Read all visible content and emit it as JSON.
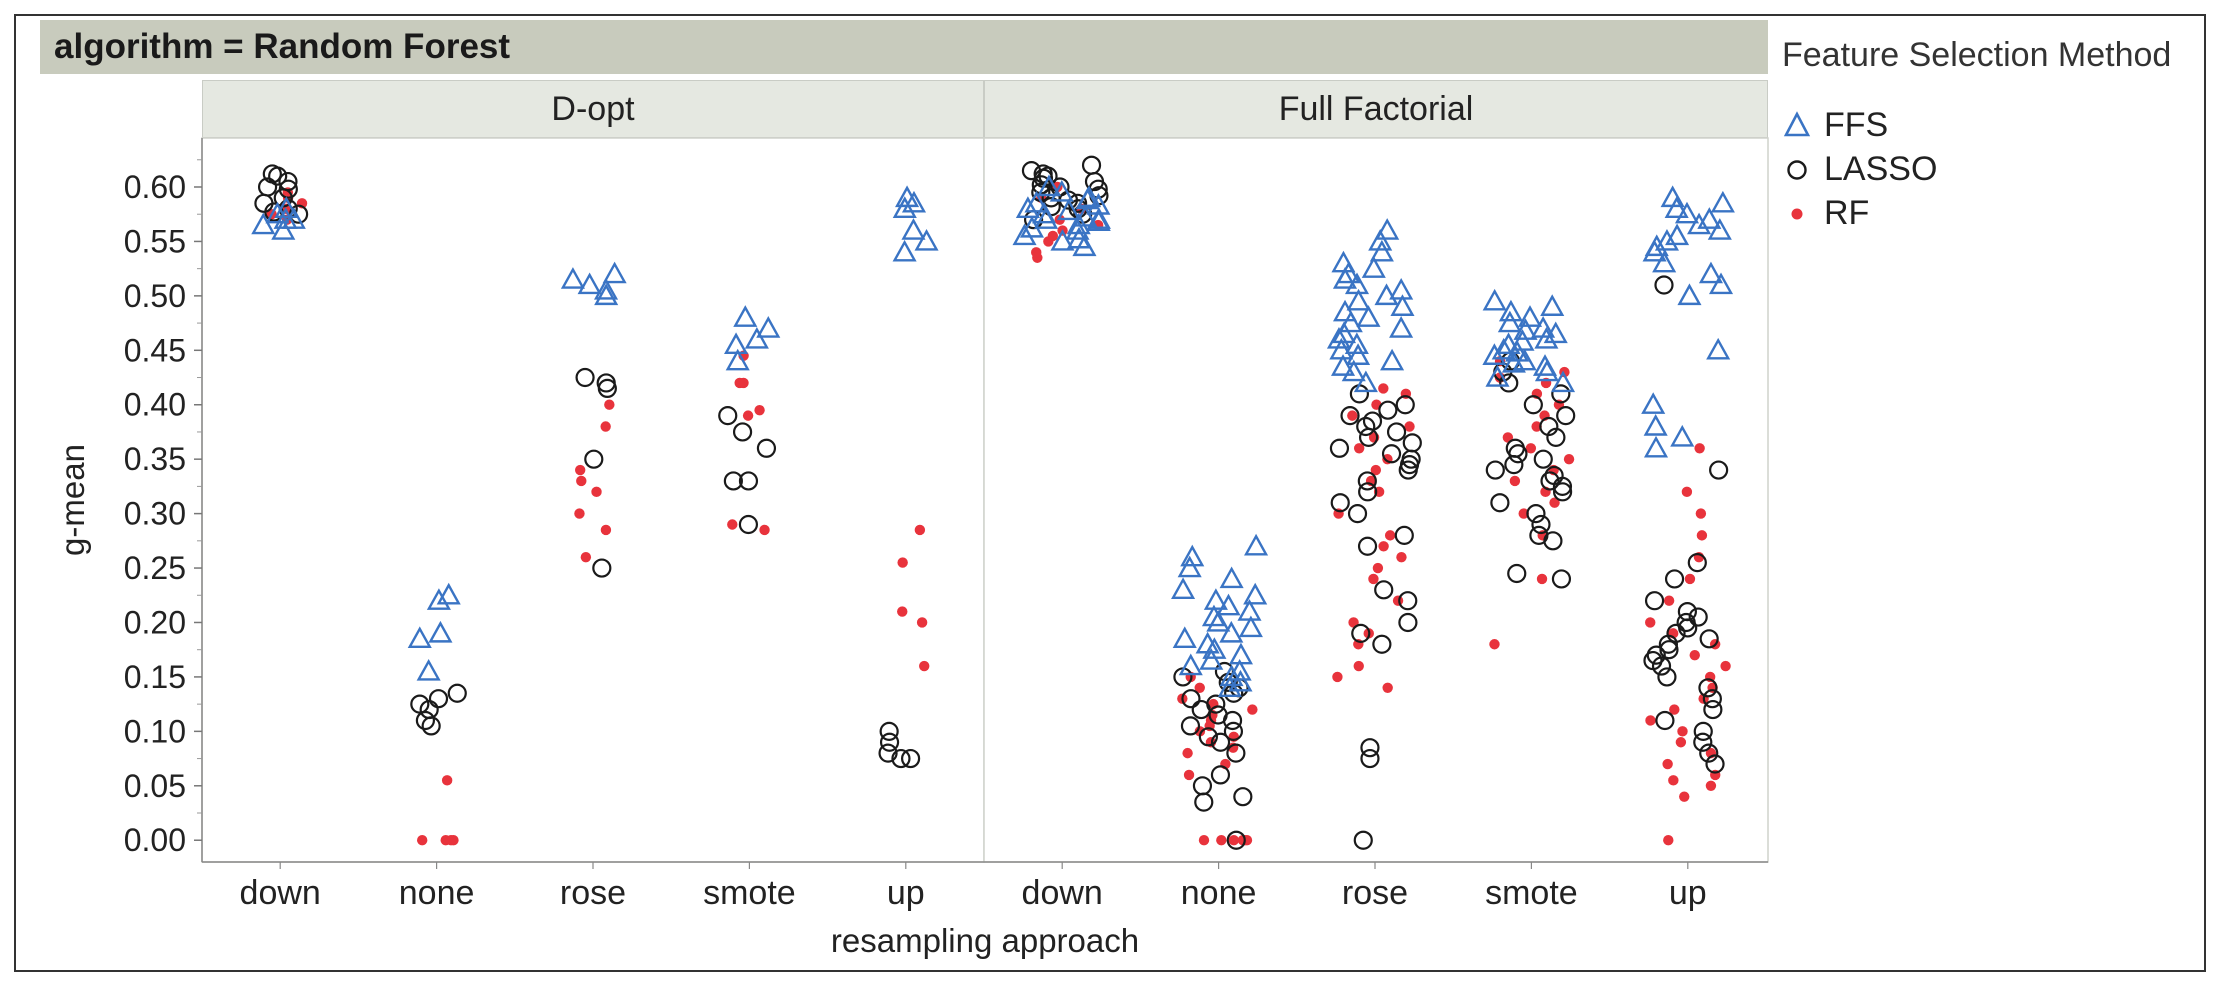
{
  "banner": "algorithm = Random Forest",
  "legend": {
    "title": "Feature Selection Method",
    "items": [
      {
        "label": "FFS",
        "color": "#3a74c4",
        "shape": "triangle-open"
      },
      {
        "label": "LASSO",
        "color": "#1a1a1a",
        "shape": "circle-open"
      },
      {
        "label": "RF",
        "color": "#e8333c",
        "shape": "dot-filled"
      }
    ]
  },
  "chart_data": {
    "type": "scatter",
    "facet_label": "algorithm = Random Forest",
    "panels": [
      "D-opt",
      "Full Factorial"
    ],
    "categories": [
      "down",
      "none",
      "rose",
      "smote",
      "up"
    ],
    "xlabel": "resampling approach",
    "ylabel": "g-mean",
    "ylim": [
      -0.02,
      0.645
    ],
    "yticks": [
      "0.00",
      "0.05",
      "0.10",
      "0.15",
      "0.20",
      "0.25",
      "0.30",
      "0.35",
      "0.40",
      "0.45",
      "0.50",
      "0.55",
      "0.60"
    ],
    "grid": false,
    "legend_position": "right",
    "series": [
      {
        "name": "FFS",
        "panels": [
          {
            "down": [
              0.56,
              0.565,
              0.57,
              0.575,
              0.58,
              0.57
            ],
            "none": [
              0.155,
              0.185,
              0.19,
              0.22,
              0.225
            ],
            "rose": [
              0.51,
              0.515,
              0.52,
              0.505,
              0.5
            ],
            "smote": [
              0.44,
              0.455,
              0.46,
              0.47,
              0.48
            ],
            "up": [
              0.54,
              0.55,
              0.56,
              0.58,
              0.585,
              0.59
            ]
          },
          {
            "down": [
              0.55,
              0.56,
              0.565,
              0.57,
              0.575,
              0.58,
              0.585,
              0.59,
              0.595,
              0.6,
              0.555,
              0.562,
              0.568,
              0.572,
              0.578,
              0.583,
              0.545,
              0.552,
              0.588,
              0.57
            ],
            "none": [
              0.14,
              0.15,
              0.16,
              0.17,
              0.18,
              0.19,
              0.2,
              0.21,
              0.22,
              0.23,
              0.24,
              0.25,
              0.26,
              0.27,
              0.165,
              0.175,
              0.185,
              0.195,
              0.205,
              0.215,
              0.225,
              0.145,
              0.155
            ],
            "rose": [
              0.42,
              0.43,
              0.44,
              0.45,
              0.46,
              0.47,
              0.48,
              0.49,
              0.5,
              0.51,
              0.52,
              0.53,
              0.54,
              0.55,
              0.56,
              0.435,
              0.445,
              0.455,
              0.465,
              0.475,
              0.485,
              0.495,
              0.505,
              0.515,
              0.525
            ],
            "smote": [
              0.42,
              0.425,
              0.43,
              0.435,
              0.44,
              0.445,
              0.45,
              0.455,
              0.46,
              0.465,
              0.47,
              0.475,
              0.48,
              0.485,
              0.49,
              0.495,
              0.438,
              0.448,
              0.458,
              0.468
            ],
            "up": [
              0.37,
              0.38,
              0.4,
              0.45,
              0.36,
              0.5,
              0.51,
              0.52,
              0.53,
              0.54,
              0.55,
              0.56,
              0.57,
              0.58,
              0.585,
              0.59,
              0.545,
              0.555,
              0.565,
              0.575
            ]
          }
        ]
      },
      {
        "name": "LASSO",
        "panels": [
          {
            "down": [
              0.575,
              0.58,
              0.585,
              0.59,
              0.6,
              0.605,
              0.61,
              0.612,
              0.598,
              0.577
            ],
            "none": [
              0.105,
              0.11,
              0.12,
              0.125,
              0.13,
              0.135
            ],
            "rose": [
              0.25,
              0.35,
              0.415,
              0.42,
              0.425
            ],
            "smote": [
              0.29,
              0.33,
              0.33,
              0.36,
              0.375,
              0.39
            ],
            "up": [
              0.075,
              0.075,
              0.08,
              0.09,
              0.1
            ]
          },
          {
            "down": [
              0.57,
              0.575,
              0.58,
              0.585,
              0.59,
              0.595,
              0.6,
              0.605,
              0.61,
              0.615,
              0.62,
              0.582,
              0.592,
              0.602,
              0.612,
              0.588,
              0.598,
              0.608
            ],
            "none": [
              0.0,
              0.035,
              0.04,
              0.05,
              0.06,
              0.08,
              0.09,
              0.1,
              0.11,
              0.12,
              0.13,
              0.14,
              0.15,
              0.105,
              0.115,
              0.125,
              0.095,
              0.135,
              0.145,
              0.155
            ],
            "rose": [
              0.0,
              0.075,
              0.085,
              0.18,
              0.19,
              0.2,
              0.22,
              0.23,
              0.27,
              0.28,
              0.3,
              0.31,
              0.32,
              0.33,
              0.34,
              0.35,
              0.36,
              0.37,
              0.38,
              0.39,
              0.4,
              0.41,
              0.345,
              0.355,
              0.365,
              0.375,
              0.385,
              0.395
            ],
            "smote": [
              0.24,
              0.245,
              0.275,
              0.28,
              0.29,
              0.3,
              0.31,
              0.32,
              0.33,
              0.34,
              0.35,
              0.36,
              0.37,
              0.38,
              0.39,
              0.4,
              0.41,
              0.42,
              0.43,
              0.44,
              0.325,
              0.335,
              0.345,
              0.355
            ],
            "up": [
              0.07,
              0.08,
              0.09,
              0.1,
              0.11,
              0.12,
              0.13,
              0.14,
              0.15,
              0.16,
              0.17,
              0.18,
              0.19,
              0.2,
              0.21,
              0.22,
              0.24,
              0.255,
              0.34,
              0.51,
              0.165,
              0.175,
              0.185,
              0.195,
              0.205
            ]
          }
        ]
      },
      {
        "name": "RF",
        "panels": [
          {
            "down": [
              0.57,
              0.575,
              0.58,
              0.585,
              0.59,
              0.595
            ],
            "none": [
              0.0,
              0.0,
              0.0,
              0.0,
              0.055
            ],
            "rose": [
              0.26,
              0.285,
              0.3,
              0.32,
              0.33,
              0.34,
              0.38,
              0.4
            ],
            "smote": [
              0.285,
              0.29,
              0.39,
              0.395,
              0.42,
              0.42,
              0.445
            ],
            "up": [
              0.16,
              0.2,
              0.21,
              0.255,
              0.285
            ]
          },
          {
            "down": [
              0.535,
              0.54,
              0.55,
              0.555,
              0.56,
              0.565,
              0.57,
              0.58,
              0.59,
              0.6
            ],
            "none": [
              0.0,
              0.0,
              0.0,
              0.0,
              0.0,
              0.0,
              0.06,
              0.07,
              0.08,
              0.085,
              0.09,
              0.095,
              0.1,
              0.105,
              0.11,
              0.115,
              0.12,
              0.125,
              0.13,
              0.14,
              0.15
            ],
            "rose": [
              0.14,
              0.15,
              0.16,
              0.18,
              0.19,
              0.2,
              0.22,
              0.24,
              0.25,
              0.26,
              0.27,
              0.28,
              0.3,
              0.32,
              0.33,
              0.34,
              0.35,
              0.36,
              0.37,
              0.38,
              0.39,
              0.4,
              0.41,
              0.415
            ],
            "smote": [
              0.18,
              0.24,
              0.28,
              0.3,
              0.31,
              0.32,
              0.33,
              0.34,
              0.35,
              0.36,
              0.37,
              0.38,
              0.39,
              0.4,
              0.41,
              0.42,
              0.425,
              0.43,
              0.44
            ],
            "up": [
              0.0,
              0.04,
              0.05,
              0.055,
              0.06,
              0.07,
              0.08,
              0.09,
              0.1,
              0.11,
              0.12,
              0.13,
              0.14,
              0.15,
              0.16,
              0.17,
              0.18,
              0.19,
              0.2,
              0.22,
              0.24,
              0.26,
              0.28,
              0.3,
              0.32,
              0.36
            ]
          }
        ]
      }
    ]
  }
}
